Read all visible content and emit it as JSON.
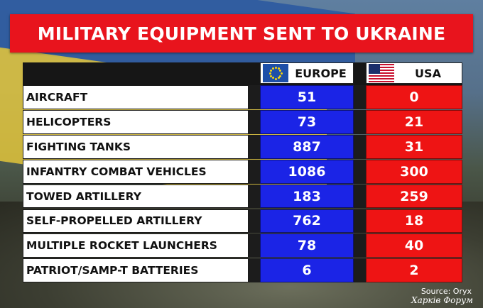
{
  "title": "MILITARY EQUIPMENT SENT TO UKRAINE",
  "columns": {
    "europe": "EUROPE",
    "usa": "USA"
  },
  "colors": {
    "title_bg": "#e8141d",
    "europe": "#1b24e6",
    "usa": "#ee1414"
  },
  "icons": {
    "europe": "eu-flag-icon",
    "usa": "us-flag-icon"
  },
  "rows": [
    {
      "label": "AIRCRAFT",
      "europe": "51",
      "usa": "0"
    },
    {
      "label": "HELICOPTERS",
      "europe": "73",
      "usa": "21"
    },
    {
      "label": "FIGHTING TANKS",
      "europe": "887",
      "usa": "31"
    },
    {
      "label": "INFANTRY COMBAT VEHICLES",
      "europe": "1086",
      "usa": "300"
    },
    {
      "label": "TOWED ARTILLERY",
      "europe": "183",
      "usa": "259"
    },
    {
      "label": "SELF-PROPELLED ARTILLERY",
      "europe": "762",
      "usa": "18"
    },
    {
      "label": "MULTIPLE ROCKET LAUNCHERS",
      "europe": "78",
      "usa": "40"
    },
    {
      "label": "PATRIOT/SAMP-T BATTERIES",
      "europe": "6",
      "usa": "2"
    }
  ],
  "source": "Source: Oryx",
  "watermark": "Харків Форум",
  "chart_data": {
    "type": "table",
    "title": "MILITARY EQUIPMENT SENT TO UKRAINE",
    "columns": [
      "EUROPE",
      "USA"
    ],
    "categories": [
      "AIRCRAFT",
      "HELICOPTERS",
      "FIGHTING TANKS",
      "INFANTRY COMBAT VEHICLES",
      "TOWED ARTILLERY",
      "SELF-PROPELLED ARTILLERY",
      "MULTIPLE ROCKET LAUNCHERS",
      "PATRIOT/SAMP-T BATTERIES"
    ],
    "series": [
      {
        "name": "EUROPE",
        "values": [
          51,
          73,
          887,
          1086,
          183,
          762,
          78,
          6
        ]
      },
      {
        "name": "USA",
        "values": [
          0,
          21,
          31,
          300,
          259,
          18,
          40,
          2
        ]
      }
    ]
  }
}
